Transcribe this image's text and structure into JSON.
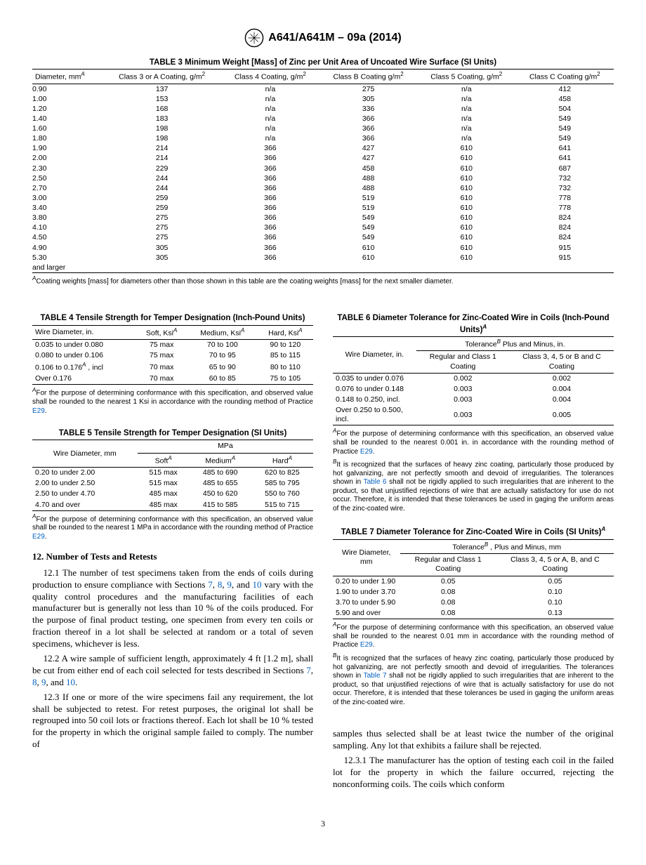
{
  "doc_id": "A641/A641M – 09a (2014)",
  "page_number": "3",
  "table3": {
    "title": "TABLE 3 Minimum Weight [Mass] of Zinc per Unit Area of Uncoated Wire Surface (SI Units)",
    "headers": [
      "Diameter, mm",
      "Class 3 or A Coating, g/m",
      "Class 4 Coating, g/m",
      "Class B Coating g/m",
      "Class 5 Coating, g/m",
      "Class C Coating g/m"
    ],
    "rows": [
      [
        "0.90",
        "137",
        "n/a",
        "275",
        "n/a",
        "412"
      ],
      [
        "1.00",
        "153",
        "n/a",
        "305",
        "n/a",
        "458"
      ],
      [
        "1.20",
        "168",
        "n/a",
        "336",
        "n/a",
        "504"
      ],
      [
        "1.40",
        "183",
        "n/a",
        "366",
        "n/a",
        "549"
      ],
      [
        "1.60",
        "198",
        "n/a",
        "366",
        "n/a",
        "549"
      ],
      [
        "1.80",
        "198",
        "n/a",
        "366",
        "n/a",
        "549"
      ],
      [
        "1.90",
        "214",
        "366",
        "427",
        "610",
        "641"
      ],
      [
        "2.00",
        "214",
        "366",
        "427",
        "610",
        "641"
      ],
      [
        "2.30",
        "229",
        "366",
        "458",
        "610",
        "687"
      ],
      [
        "2.50",
        "244",
        "366",
        "488",
        "610",
        "732"
      ],
      [
        "2.70",
        "244",
        "366",
        "488",
        "610",
        "732"
      ],
      [
        "3.00",
        "259",
        "366",
        "519",
        "610",
        "778"
      ],
      [
        "3.40",
        "259",
        "366",
        "519",
        "610",
        "778"
      ],
      [
        "3.80",
        "275",
        "366",
        "549",
        "610",
        "824"
      ],
      [
        "4.10",
        "275",
        "366",
        "549",
        "610",
        "824"
      ],
      [
        "4.50",
        "275",
        "366",
        "549",
        "610",
        "824"
      ],
      [
        "4.90",
        "305",
        "366",
        "610",
        "610",
        "915"
      ],
      [
        "5.30",
        "305",
        "366",
        "610",
        "610",
        "915"
      ]
    ],
    "last_row_label": "and larger",
    "footnote_A": "Coating weights [mass] for diameters other than those shown in this table are the coating weights [mass] for the next smaller diameter."
  },
  "table4": {
    "title": "TABLE 4 Tensile Strength for Temper Designation (Inch-Pound Units)",
    "headers": [
      "Wire Diameter, in.",
      "Soft, Ksi",
      "Medium, Ksi",
      "Hard, Ksi"
    ],
    "rows": [
      [
        "0.035 to under 0.080",
        "75 max",
        "70 to 100",
        "90 to 120"
      ],
      [
        "0.080 to under 0.106",
        "75 max",
        "70 to 95",
        "85 to 115"
      ],
      [
        "0.106 to 0.176 , incl",
        "70 max",
        "65 to 90",
        "80 to 110"
      ],
      [
        "Over 0.176",
        "70 max",
        "60 to 85",
        "75 to 105"
      ]
    ],
    "footnote_A": "For the purpose of determining conformance with this specification, and observed value shall be rounded to the nearest 1 Ksi in accordance with the rounding method of Practice ",
    "footnote_A_link": "E29"
  },
  "table5": {
    "title": "TABLE 5 Tensile Strength for Temper Designation (SI Units)",
    "header_group": "MPa",
    "headers": [
      "Wire Diameter, mm",
      "Soft",
      "Medium",
      "Hard"
    ],
    "rows": [
      [
        "0.20 to under 2.00",
        "515 max",
        "485 to 690",
        "620 to 825"
      ],
      [
        "2.00 to under 2.50",
        "515 max",
        "485 to 655",
        "585 to 795"
      ],
      [
        "2.50 to under 4.70",
        "485 max",
        "450 to 620",
        "550 to 760"
      ],
      [
        "4.70 and over",
        "485 max",
        "415 to 585",
        "515 to 715"
      ]
    ],
    "footnote_A": "For the purpose of determining conformance with this specification, an observed value shall be rounded to the nearest 1 MPa in accordance with the rounding method of Practice ",
    "footnote_A_link": "E29"
  },
  "table6": {
    "title": "TABLE 6 Diameter Tolerance for Zinc-Coated Wire in Coils (Inch-Pound Units)",
    "header_group": "Tolerance  Plus and Minus, in.",
    "headers": [
      "Wire Diameter, in.",
      "Regular and Class 1 Coating",
      "Class 3, 4, 5 or B and C Coating"
    ],
    "rows": [
      [
        "0.035 to under 0.076",
        "0.002",
        "0.002"
      ],
      [
        "0.076 to under 0.148",
        "0.003",
        "0.004"
      ],
      [
        "0.148 to 0.250, incl.",
        "0.003",
        "0.004"
      ],
      [
        "Over 0.250 to 0.500, incl.",
        "0.003",
        "0.005"
      ]
    ],
    "footnote_A": "For the purpose of determining conformance with this specification, an observed value shall be rounded to the nearest 0.001 in. in accordance with the rounding method of Practice ",
    "footnote_A_link": "E29",
    "footnote_B": "It is recognized that the surfaces of heavy zinc coating, particularly those produced by hot galvanizing, are not perfectly smooth and devoid of irregularities. The tolerances shown in ",
    "footnote_B_link": "Table 6",
    "footnote_B_cont": " shall not be rigidly applied to such irregularities that are inherent to the product, so that unjustified rejections of wire that are actually satisfactory for use do not occur. Therefore, it is intended that these tolerances be used in gaging the uniform areas of the zinc-coated wire."
  },
  "table7": {
    "title": "TABLE 7 Diameter Tolerance for Zinc-Coated Wire in Coils (SI Units)",
    "header_group": "Tolerance , Plus and Minus, mm",
    "headers": [
      "Wire Diameter, mm",
      "Regular and Class 1 Coating",
      "Class 3, 4, 5 or A, B, and C Coating"
    ],
    "rows": [
      [
        "0.20 to under 1.90",
        "0.05",
        "0.05"
      ],
      [
        "1.90 to under 3.70",
        "0.08",
        "0.10"
      ],
      [
        "3.70 to under 5.90",
        "0.08",
        "0.10"
      ],
      [
        "5.90 and over",
        "0.08",
        "0.13"
      ]
    ],
    "footnote_A": "For the purpose of determining conformance with this specification, an observed value shall be rounded to the nearest 0.01 mm in accordance with the rounding method of Practice ",
    "footnote_A_link": "E29",
    "footnote_B": "It is recognized that the surfaces of heavy zinc coating, particularly those produced by hot galvanizing, are not perfectly smooth and devoid of irregularities. The tolerances shown in ",
    "footnote_B_link": "Table 7",
    "footnote_B_cont": " shall not be rigidly applied to such irregularities that are inherent to the product, so that unjustified rejections of wire that is actually satisfactory for use do not occur. Therefore, it is intended that these tolerances be used in gaging the uniform areas of the zinc-coated wire."
  },
  "section12": {
    "title": "12.  Number of Tests and Retests",
    "p1_a": "12.1 The number of test specimens taken from the ends of coils during production to ensure compliance with Sections ",
    "p1_links": [
      "7",
      "8",
      "9",
      "10"
    ],
    "p1_b": " vary with the quality control procedures and the manufacturing facilities of each manufacturer but is generally not less than 10 % of the coils produced. For the purpose of final product testing, one specimen from every ten coils or fraction thereof in a lot shall be selected at random or a total of seven specimens, whichever is less.",
    "p2_a": "12.2 A wire sample of sufficient length, approximately 4 ft [1.2 m], shall be cut from either end of each coil selected for tests described in Sections ",
    "p3": "12.3 If one or more of the wire specimens fail any requirement, the lot shall be subjected to retest. For retest purposes, the original lot shall be regrouped into 50 coil lots or fractions thereof. Each lot shall be 10 % tested for the property in which the original sample failed to comply. The number of",
    "rcol_p1": "samples thus selected shall be at least twice the number of the original sampling. Any lot that exhibits a failure shall be rejected.",
    "rcol_p2": "12.3.1 The manufacturer has the option of testing each coil in the failed lot for the property in which the failure occurred, rejecting the nonconforming coils. The coils which conform"
  }
}
